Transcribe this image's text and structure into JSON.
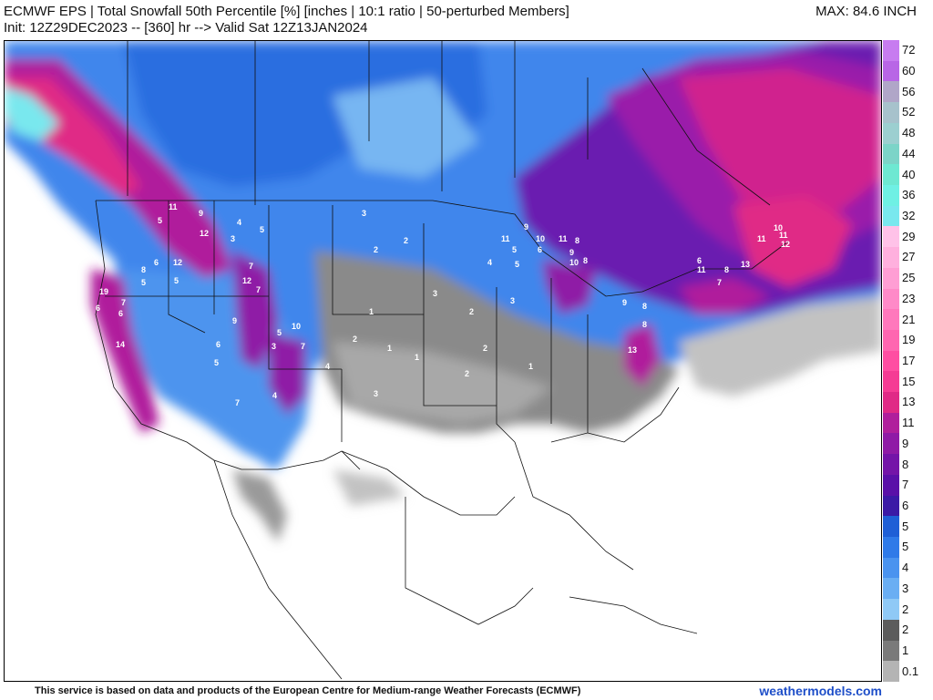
{
  "header": {
    "title": "ECMWF EPS | Total Snowfall 50th Percentile [%] [inches | 10:1 ratio | 50-perturbed Members]",
    "init_line": "Init: 12Z29DEC2023 -- [360] hr --> Valid Sat 12Z13JAN2024",
    "max_label": "MAX: 84.6 INCH"
  },
  "legend": {
    "items": [
      {
        "label": "72",
        "color": "#c77cf0"
      },
      {
        "label": "60",
        "color": "#b866e6"
      },
      {
        "label": "56",
        "color": "#b0a6c8"
      },
      {
        "label": "52",
        "color": "#a7c2cc"
      },
      {
        "label": "48",
        "color": "#9ccfd0"
      },
      {
        "label": "44",
        "color": "#7cd4c8"
      },
      {
        "label": "40",
        "color": "#6ee8d2"
      },
      {
        "label": "36",
        "color": "#6ff0e4"
      },
      {
        "label": "32",
        "color": "#79e8ee"
      },
      {
        "label": "29",
        "color": "#ffc2e8"
      },
      {
        "label": "27",
        "color": "#ffb0de"
      },
      {
        "label": "25",
        "color": "#ff9ed4"
      },
      {
        "label": "23",
        "color": "#ff8ac8"
      },
      {
        "label": "21",
        "color": "#ff78bc"
      },
      {
        "label": "19",
        "color": "#ff66b0"
      },
      {
        "label": "17",
        "color": "#ff4ea2"
      },
      {
        "label": "15",
        "color": "#f53c94"
      },
      {
        "label": "13",
        "color": "#e02a86"
      },
      {
        "label": "11",
        "color": "#b01f9c"
      },
      {
        "label": "9",
        "color": "#8f1aa6"
      },
      {
        "label": "8",
        "color": "#7414a8"
      },
      {
        "label": "7",
        "color": "#5a10a8"
      },
      {
        "label": "6",
        "color": "#3b1aa6"
      },
      {
        "label": "5",
        "color": "#1f5fd6"
      },
      {
        "label": "5",
        "color": "#2f7ae8"
      },
      {
        "label": "4",
        "color": "#4a93ef"
      },
      {
        "label": "3",
        "color": "#6aaef3"
      },
      {
        "label": "2",
        "color": "#8fc9f6"
      },
      {
        "label": "2",
        "color": "#5c5c5c"
      },
      {
        "label": "1",
        "color": "#7a7a7a"
      },
      {
        "label": "0.1",
        "color": "#b4b4b4"
      }
    ]
  },
  "map": {
    "point_values": [
      {
        "group": "pacific-nw",
        "labels": [
          "11",
          "5",
          "9",
          "12",
          "8",
          "6",
          "12",
          "19",
          "6",
          "7",
          "6",
          "14",
          "5",
          "5"
        ]
      },
      {
        "group": "rockies",
        "labels": [
          "4",
          "5",
          "3",
          "7",
          "12",
          "7",
          "10",
          "5",
          "9",
          "3",
          "7",
          "4",
          "6",
          "5",
          "7"
        ]
      },
      {
        "group": "great-lakes",
        "labels": [
          "9",
          "11",
          "10",
          "11",
          "8",
          "9",
          "10",
          "8",
          "5",
          "6",
          "5",
          "4",
          "3"
        ]
      },
      {
        "group": "northeast",
        "labels": [
          "10",
          "11",
          "12",
          "11",
          "13",
          "11",
          "8",
          "7",
          "6",
          "8",
          "13",
          "9",
          "8"
        ]
      },
      {
        "group": "plains",
        "labels": [
          "3",
          "2",
          "2",
          "1",
          "2",
          "1",
          "3",
          "2",
          "1",
          "2",
          "4",
          "3",
          "2",
          "1"
        ]
      }
    ]
  },
  "footer": {
    "credit": "This service is based on data and products of the European Centre for Medium-range Weather Forecasts (ECMWF)",
    "brand": "weathermodels.com"
  }
}
